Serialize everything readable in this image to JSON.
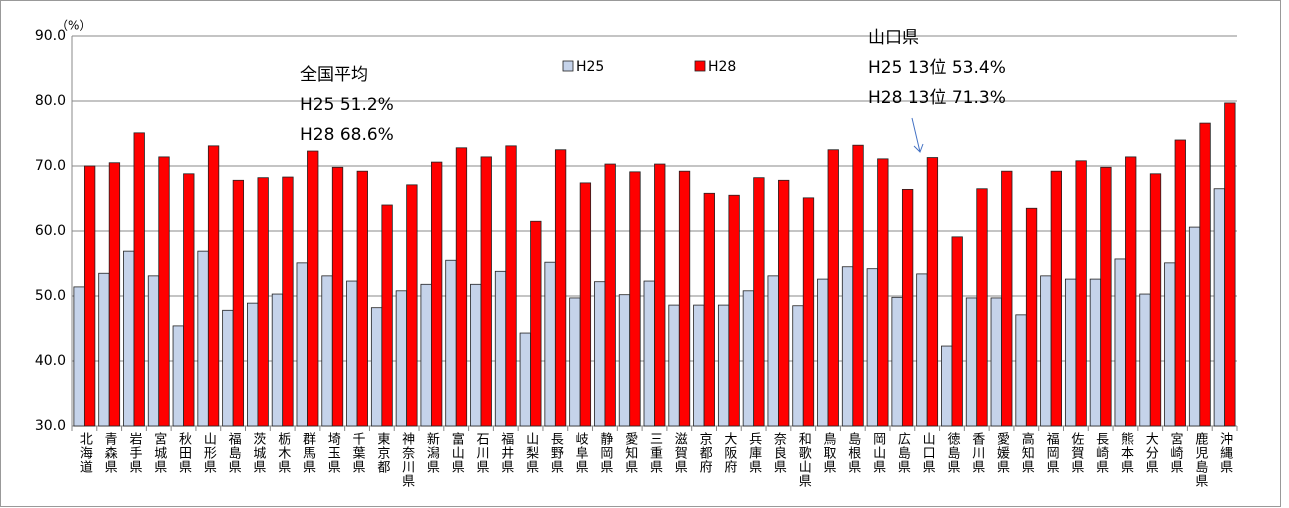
{
  "chart_data": {
    "type": "bar",
    "unit_label": "（%）",
    "categories": [
      "北海道",
      "青森県",
      "岩手県",
      "宮城県",
      "秋田県",
      "山形県",
      "福島県",
      "茨城県",
      "栃木県",
      "群馬県",
      "埼玉県",
      "千葉県",
      "東京都",
      "神奈川県",
      "新潟県",
      "富山県",
      "石川県",
      "福井県",
      "山梨県",
      "長野県",
      "岐阜県",
      "静岡県",
      "愛知県",
      "三重県",
      "滋賀県",
      "京都府",
      "大阪府",
      "兵庫県",
      "奈良県",
      "和歌山県",
      "鳥取県",
      "島根県",
      "岡山県",
      "広島県",
      "山口県",
      "徳島県",
      "香川県",
      "愛媛県",
      "高知県",
      "福岡県",
      "佐賀県",
      "長崎県",
      "熊本県",
      "大分県",
      "宮崎県",
      "鹿児島県",
      "沖縄県"
    ],
    "series": [
      {
        "name": "H25",
        "color": "#c5d3ea",
        "values": [
          51.4,
          53.5,
          56.9,
          53.1,
          45.4,
          56.9,
          47.8,
          48.9,
          50.3,
          55.1,
          53.1,
          52.3,
          48.2,
          50.8,
          51.8,
          55.5,
          51.8,
          53.8,
          44.3,
          55.2,
          49.7,
          52.2,
          50.2,
          52.3,
          48.6,
          48.6,
          48.6,
          50.8,
          53.1,
          48.5,
          52.6,
          54.5,
          54.2,
          49.8,
          53.4,
          42.3,
          49.7,
          49.7,
          47.1,
          53.1,
          52.6,
          52.6,
          55.7,
          50.3,
          55.1,
          60.6,
          66.5
        ]
      },
      {
        "name": "H28",
        "color": "#ff0000",
        "values": [
          70.0,
          70.5,
          75.1,
          71.4,
          68.8,
          73.1,
          67.8,
          68.2,
          68.3,
          72.3,
          69.8,
          69.2,
          64.0,
          67.1,
          70.6,
          72.8,
          71.4,
          73.1,
          61.5,
          72.5,
          67.4,
          70.3,
          69.1,
          70.3,
          69.2,
          65.8,
          65.5,
          68.2,
          67.8,
          65.1,
          72.5,
          73.2,
          71.1,
          66.4,
          71.3,
          59.1,
          66.5,
          69.2,
          63.5,
          69.2,
          70.8,
          69.8,
          71.4,
          68.8,
          74.0,
          76.6,
          79.7
        ]
      }
    ],
    "ylim": [
      30,
      90
    ],
    "yticks": [
      {
        "value": 30,
        "label": "30.0"
      },
      {
        "value": 40,
        "label": "40.0"
      },
      {
        "value": 50,
        "label": "50.0"
      },
      {
        "value": 60,
        "label": "60.0"
      },
      {
        "value": 70,
        "label": "70.0"
      },
      {
        "value": 80,
        "label": "80.0"
      },
      {
        "value": 90,
        "label": "90.0"
      }
    ],
    "grid": true,
    "annotations": [
      {
        "lines": [
          "全国平均",
          "H25  51.2%",
          "H28  68.6%"
        ]
      },
      {
        "lines": [
          "山口県",
          "H25  13位  53.4%",
          "H28  13位  71.3%"
        ]
      }
    ]
  }
}
